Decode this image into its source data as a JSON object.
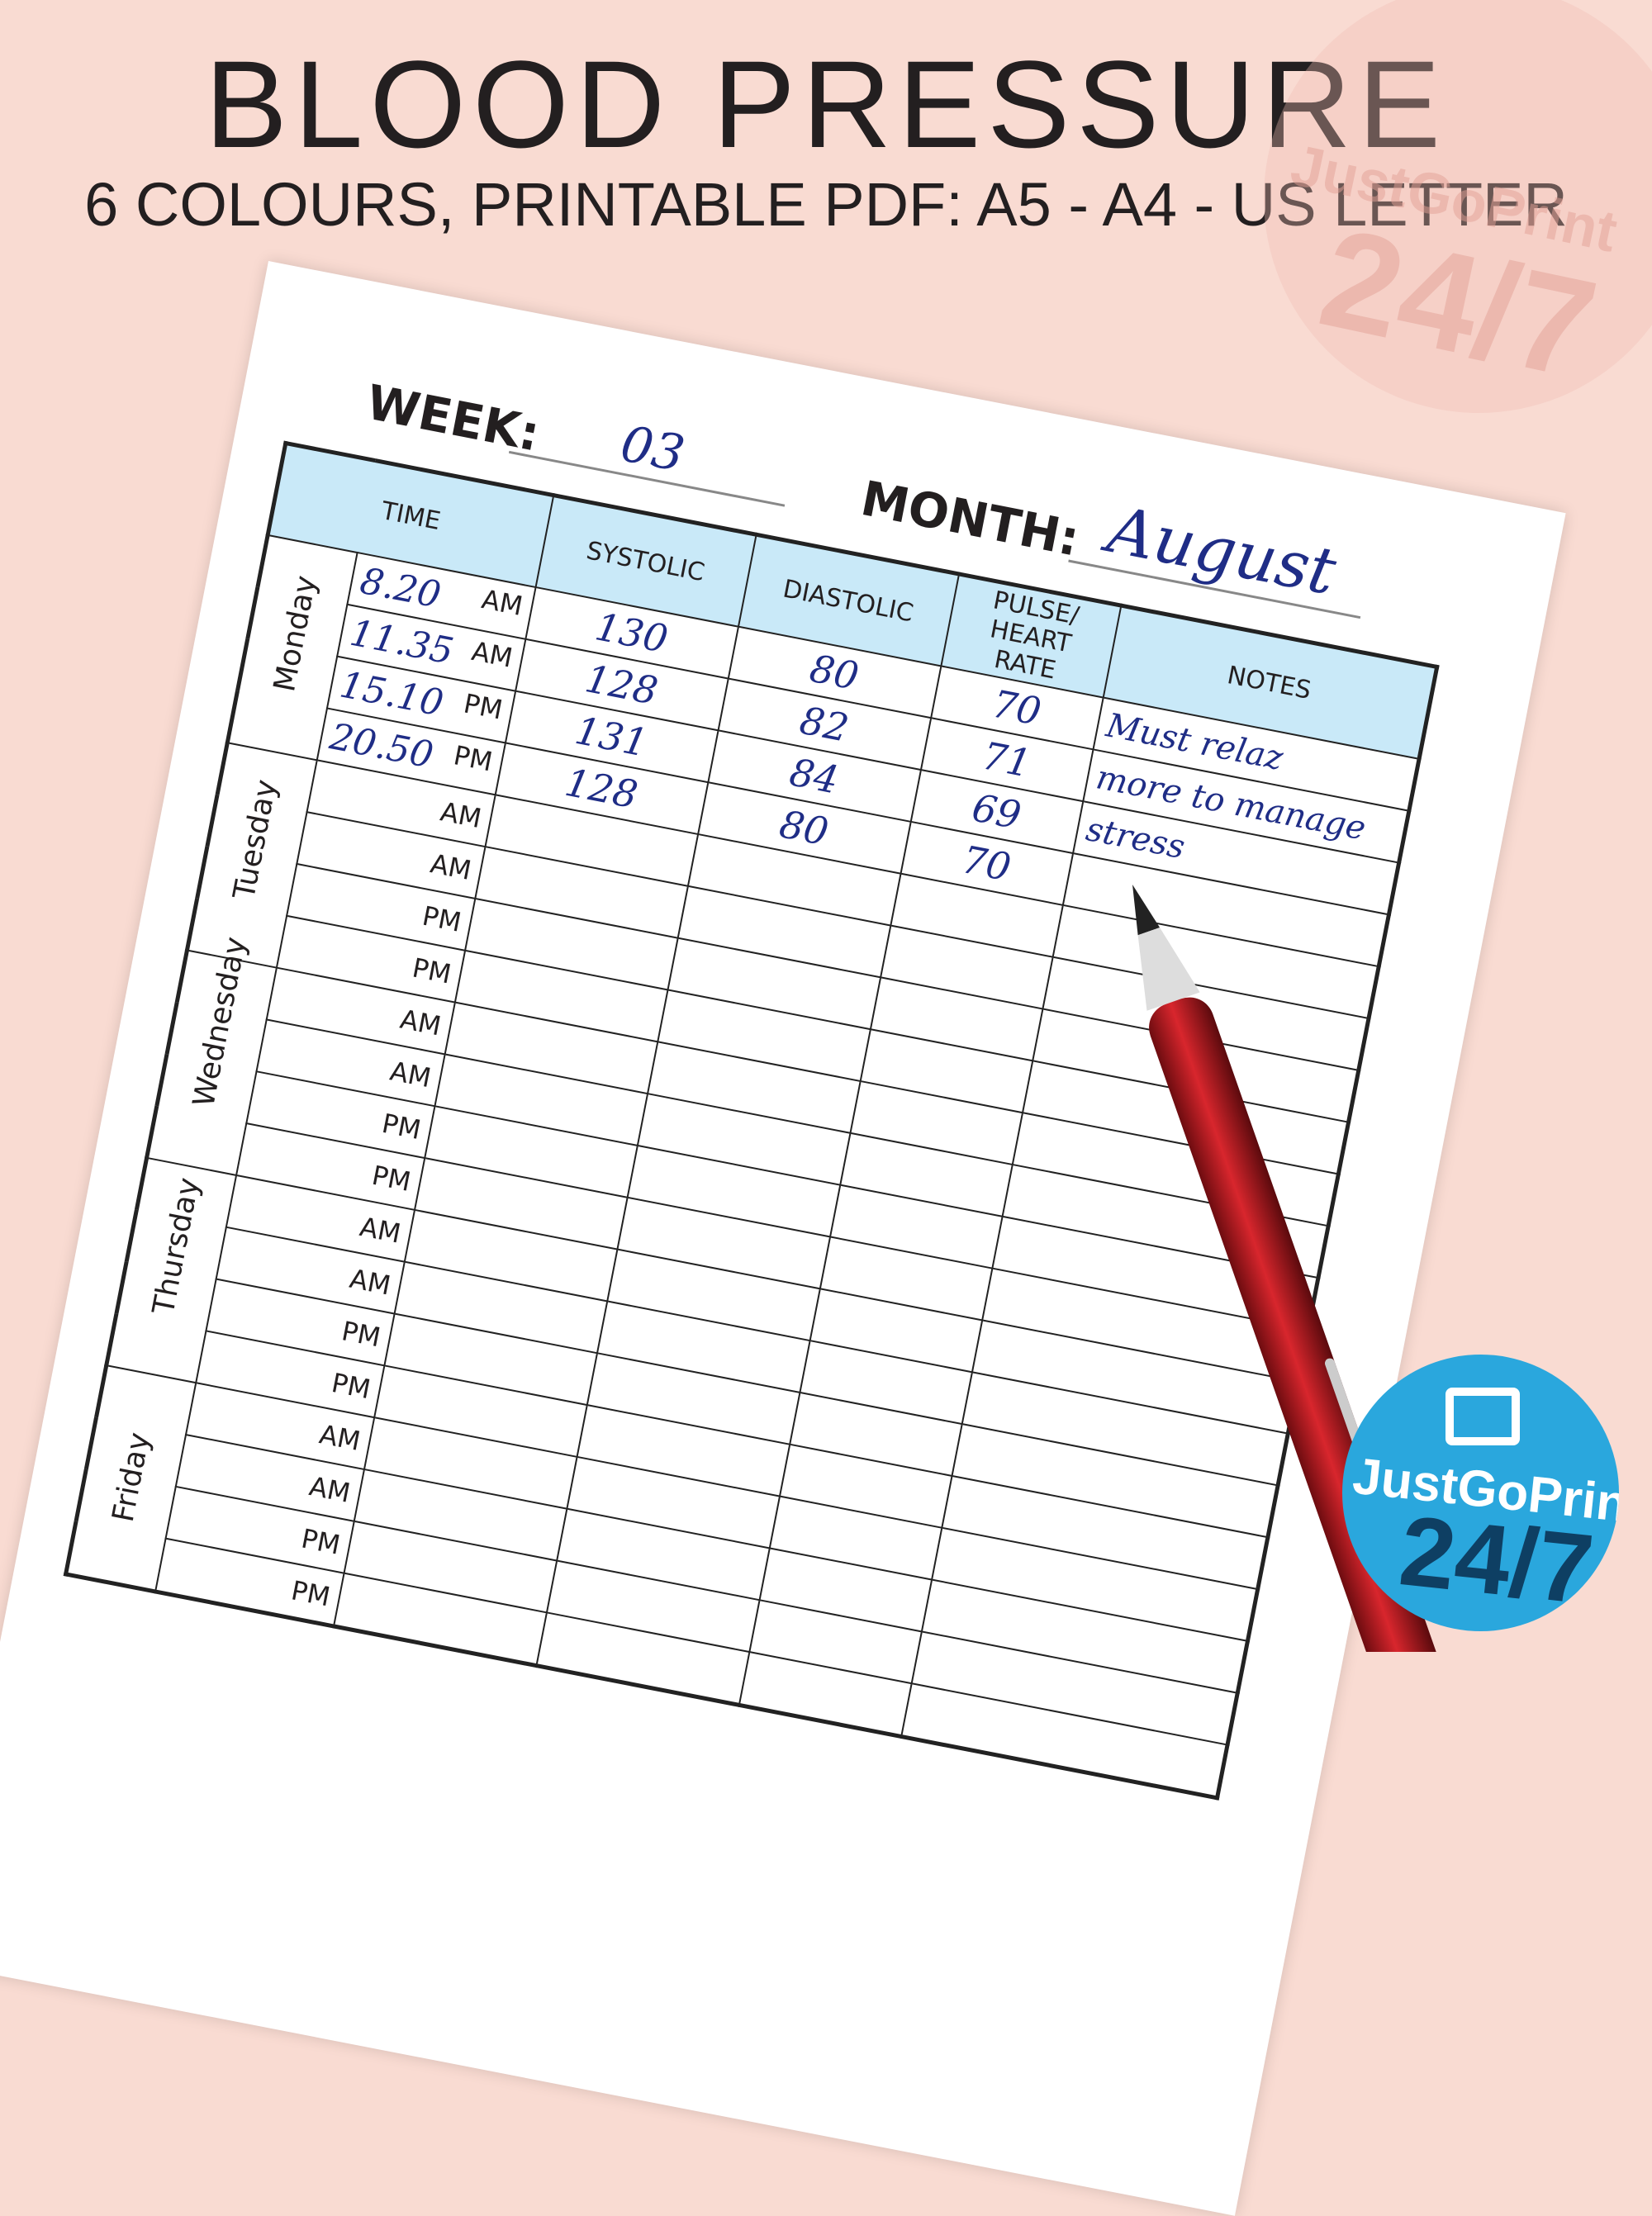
{
  "header": {
    "title": "BLOOD PRESSURE",
    "subtitle": "6 COLOURS, PRINTABLE PDF: A5 - A4 - US LETTER"
  },
  "log": {
    "week_label": "WEEK:",
    "week": "03",
    "month_label": "MONTH:",
    "month": "August",
    "columns": [
      "TIME",
      "SYSTOLIC",
      "DIASTOLIC",
      "PULSE/ HEART RATE",
      "NOTES"
    ],
    "days": [
      {
        "day": "Monday",
        "rows": [
          {
            "time": "8.20",
            "period": "AM",
            "systolic": 130,
            "diastolic": 80,
            "pulse": 70,
            "notes": "Must relaz"
          },
          {
            "time": "11.35",
            "period": "AM",
            "systolic": 128,
            "diastolic": 82,
            "pulse": 71,
            "notes": "more to manage"
          },
          {
            "time": "15.10",
            "period": "PM",
            "systolic": 131,
            "diastolic": 84,
            "pulse": 69,
            "notes": "stress"
          },
          {
            "time": "20.50",
            "period": "PM",
            "systolic": 128,
            "diastolic": 80,
            "pulse": 70
          }
        ]
      },
      {
        "day": "Tuesday",
        "rows": [
          {
            "period": "AM"
          },
          {
            "period": "AM"
          },
          {
            "period": "PM"
          },
          {
            "period": "PM"
          }
        ]
      },
      {
        "day": "Wednesday",
        "rows": [
          {
            "period": "AM"
          },
          {
            "period": "AM"
          },
          {
            "period": "PM"
          },
          {
            "period": "PM"
          }
        ]
      },
      {
        "day": "Thursday",
        "rows": [
          {
            "period": "AM"
          },
          {
            "period": "AM"
          },
          {
            "period": "PM"
          },
          {
            "period": "PM"
          }
        ]
      },
      {
        "day": "Friday",
        "rows": [
          {
            "period": "AM"
          },
          {
            "period": "AM"
          },
          {
            "period": "PM"
          },
          {
            "period": "PM"
          }
        ]
      }
    ]
  },
  "logo": {
    "name": "JustGoPrint",
    "tag": "24/7"
  }
}
